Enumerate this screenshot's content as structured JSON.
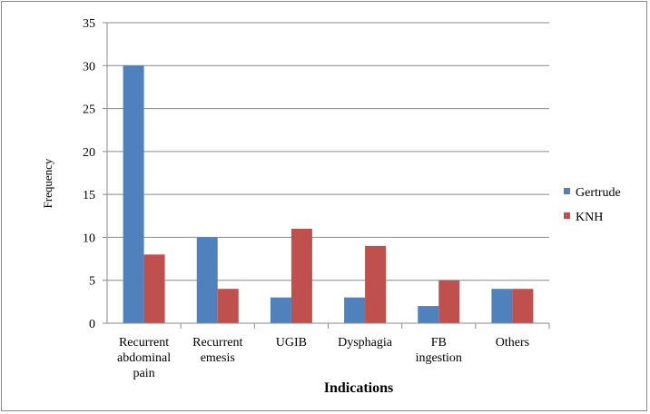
{
  "chart_data": {
    "type": "bar",
    "title": "",
    "xlabel": "Indications",
    "ylabel": "Frequency",
    "ylim": [
      0,
      35
    ],
    "yticks": [
      0,
      5,
      10,
      15,
      20,
      25,
      30,
      35
    ],
    "grid": "horizontal",
    "legend_position": "right",
    "categories": [
      [
        "Recurrent",
        "abdominal",
        "pain"
      ],
      [
        "Recurrent",
        "emesis"
      ],
      [
        "UGIB"
      ],
      [
        "Dysphagia"
      ],
      [
        "FB",
        "ingestion"
      ],
      [
        "Others"
      ]
    ],
    "series": [
      {
        "name": "Gertrude",
        "color": "#4f81bd",
        "values": [
          30,
          10,
          3,
          3,
          2,
          4
        ]
      },
      {
        "name": "KNH",
        "color": "#c0504d",
        "values": [
          8,
          4,
          11,
          9,
          5,
          4
        ]
      }
    ]
  }
}
